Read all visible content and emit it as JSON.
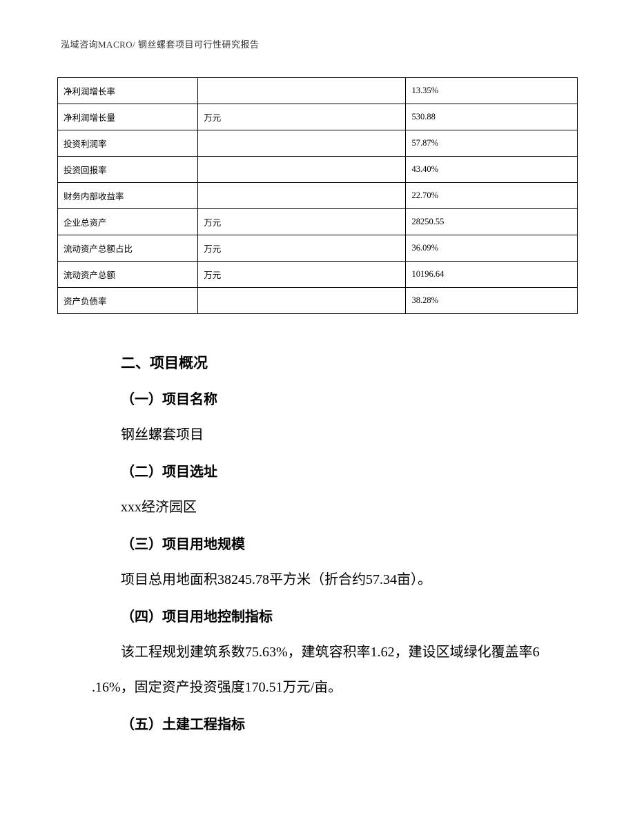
{
  "header": {
    "text": "泓域咨询MACRO/    钢丝螺套项目可行性研究报告"
  },
  "table": {
    "type": "table",
    "border_color": "#000000",
    "background_color": "#ffffff",
    "font_size_pt": 9,
    "columns": [
      {
        "key": "label",
        "width_pct": 27
      },
      {
        "key": "unit",
        "width_pct": 40
      },
      {
        "key": "value",
        "width_pct": 33
      }
    ],
    "rows": [
      {
        "label": "净利润增长率",
        "unit": "",
        "value": "13.35%"
      },
      {
        "label": "净利润增长量",
        "unit": "万元",
        "value": "530.88"
      },
      {
        "label": "投资利润率",
        "unit": "",
        "value": "57.87%"
      },
      {
        "label": "投资回报率",
        "unit": "",
        "value": "43.40%"
      },
      {
        "label": "财务内部收益率",
        "unit": "",
        "value": "22.70%"
      },
      {
        "label": "企业总资产",
        "unit": "万元",
        "value": "28250.55"
      },
      {
        "label": "流动资产总额占比",
        "unit": "万元",
        "value": "36.09%"
      },
      {
        "label": "流动资产总额",
        "unit": "万元",
        "value": "10196.64"
      },
      {
        "label": "资产负债率",
        "unit": "",
        "value": "38.28%"
      }
    ]
  },
  "sections": {
    "main_heading": "二、项目概况",
    "sub1": {
      "heading": "（一）项目名称",
      "body": "钢丝螺套项目"
    },
    "sub2": {
      "heading": "（二）项目选址",
      "body": "xxx经济园区"
    },
    "sub3": {
      "heading": "（三）项目用地规模",
      "body": "项目总用地面积38245.78平方米（折合约57.34亩）。"
    },
    "sub4": {
      "heading": "（四）项目用地控制指标",
      "body_line1": "该工程规划建筑系数75.63%，建筑容积率1.62，建设区域绿化覆盖率6",
      "body_line2": ".16%，固定资产投资强度170.51万元/亩。"
    },
    "sub5": {
      "heading": "（五）土建工程指标"
    }
  },
  "styling": {
    "page_bg": "#ffffff",
    "text_color": "#000000",
    "heading_font": "SimHei",
    "body_font": "SimSun",
    "heading_fontsize_pt": 16,
    "body_fontsize_pt": 15,
    "table_fontsize_pt": 9,
    "line_height": 2.55
  }
}
